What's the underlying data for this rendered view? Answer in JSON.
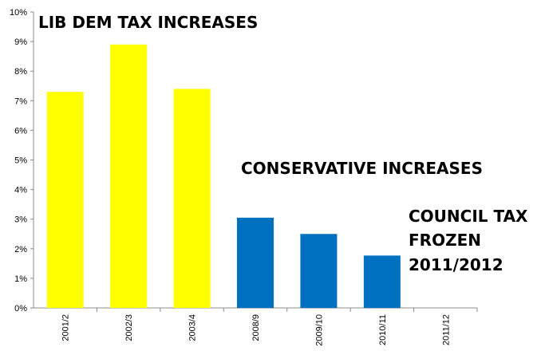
{
  "chart_data": {
    "type": "bar",
    "categories": [
      "2001/2",
      "2002/3",
      "2003/4",
      "2008/9",
      "2009/10",
      "2010/11",
      "2011/12"
    ],
    "values": [
      7.3,
      8.9,
      7.4,
      3.05,
      2.5,
      1.77,
      0
    ],
    "bar_colors": [
      "#ffff00",
      "#ffff00",
      "#ffff00",
      "#0070c0",
      "#0070c0",
      "#0070c0",
      "#0070c0"
    ],
    "ylim": [
      0,
      10
    ],
    "y_ticks": [
      "0%",
      "1%",
      "2%",
      "3%",
      "4%",
      "5%",
      "6%",
      "7%",
      "8%",
      "9%",
      "10%"
    ],
    "grid": false,
    "annotations": {
      "lib_dem": "LIB DEM TAX INCREASES",
      "conservative": "CONSERVATIVE INCREASES",
      "frozen_line1": "COUNCIL TAX",
      "frozen_line2": "FROZEN",
      "frozen_line3": "2011/2012"
    }
  }
}
